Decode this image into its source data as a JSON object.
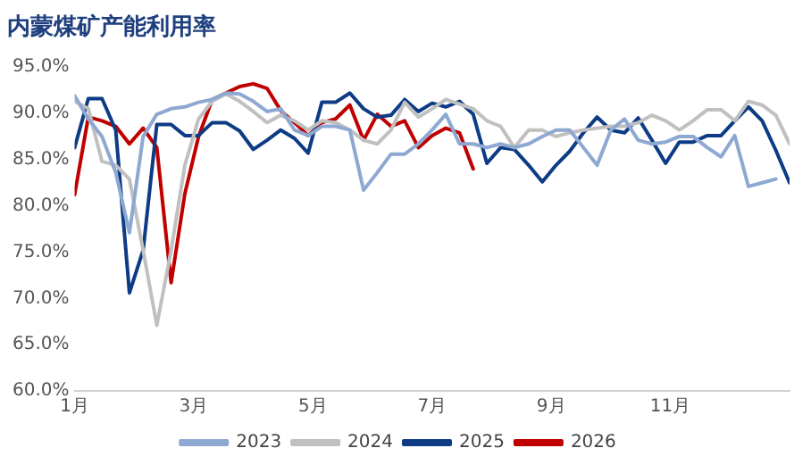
{
  "chart_data": {
    "type": "line",
    "title": "内蒙煤矿产能利用率",
    "x": [
      1,
      1.23,
      1.46,
      1.69,
      1.92,
      2.15,
      2.38,
      2.62,
      2.85,
      3.08,
      3.31,
      3.54,
      3.77,
      4,
      4.23,
      4.46,
      4.69,
      4.92,
      5.15,
      5.38,
      5.62,
      5.85,
      6.08,
      6.31,
      6.54,
      6.77,
      7,
      7.23,
      7.46,
      7.69,
      7.92,
      8.15,
      8.38,
      8.62,
      8.85,
      9.08,
      9.31,
      9.54,
      9.77,
      10,
      10.23,
      10.46,
      10.69,
      10.92,
      11.15,
      11.38,
      11.62,
      11.85,
      12.08,
      12.31,
      12.54,
      12.77,
      13
    ],
    "series": [
      {
        "name": "2023",
        "color": "#8ea9d1",
        "values": [
          91.9,
          89.4,
          87.5,
          83.6,
          77.1,
          87.5,
          89.9,
          90.5,
          90.7,
          91.2,
          91.5,
          92.2,
          92.1,
          91.3,
          90.2,
          90.5,
          88.2,
          87.6,
          88.6,
          88.6,
          88.2,
          81.7,
          83.6,
          85.6,
          85.6,
          86.7,
          88.2,
          89.9,
          86.7,
          86.7,
          86.3,
          86.7,
          86.3,
          86.7,
          87.5,
          88.2,
          88.2,
          86.3,
          84.4,
          88.2,
          89.4,
          87.1,
          86.7,
          86.9,
          87.5,
          87.5,
          86.3,
          85.3,
          87.6,
          82.1,
          82.5,
          82.9,
          null
        ]
      },
      {
        "name": "2024",
        "color": "#c0c0c0",
        "values": [
          91.3,
          90.5,
          84.8,
          84.4,
          82.9,
          75.2,
          67.1,
          75.2,
          84.4,
          89.4,
          91.3,
          92.1,
          91.3,
          90.2,
          89,
          89.8,
          89.2,
          88.2,
          89.2,
          89,
          88.2,
          87.1,
          86.7,
          88.2,
          91.2,
          89.6,
          90.5,
          91.5,
          91,
          90.5,
          89.2,
          88.6,
          86.3,
          88.2,
          88.2,
          87.5,
          87.9,
          88.2,
          88.4,
          88.6,
          88.6,
          89,
          89.8,
          89.2,
          88.2,
          89.2,
          90.4,
          90.4,
          89.2,
          91.3,
          90.9,
          89.8,
          86.7
        ]
      },
      {
        "name": "2025",
        "color": "#0d3c85",
        "values": [
          86.3,
          91.6,
          91.6,
          88.2,
          70.6,
          75.2,
          88.8,
          88.8,
          87.6,
          87.6,
          89,
          89,
          88.1,
          86.1,
          87.1,
          88.2,
          87.3,
          85.7,
          91.2,
          91.2,
          92.2,
          90.5,
          89.6,
          89.8,
          91.5,
          90.2,
          91.1,
          90.7,
          91.3,
          89.9,
          84.6,
          86.3,
          86.1,
          84.4,
          82.6,
          84.4,
          85.9,
          87.9,
          89.6,
          88.2,
          87.9,
          89.5,
          87.1,
          84.6,
          86.9,
          86.9,
          87.6,
          87.6,
          89.2,
          90.7,
          89.2,
          86,
          82.5
        ]
      },
      {
        "name": "2026",
        "color": "#c00000",
        "values": [
          81.2,
          89.6,
          89.2,
          88.6,
          86.7,
          88.4,
          86.3,
          71.7,
          81.3,
          87.5,
          91.5,
          92.2,
          92.9,
          93.2,
          92.7,
          90.3,
          89,
          87.6,
          89,
          89.4,
          90.9,
          87.1,
          89.9,
          88.6,
          89.2,
          86.3,
          87.6,
          88.4,
          87.9,
          84,
          null,
          null,
          null,
          null,
          null,
          null,
          null,
          null,
          null,
          null,
          null,
          null,
          null,
          null,
          null,
          null,
          null,
          null,
          null,
          null,
          null,
          null,
          null
        ]
      }
    ],
    "xlim": [
      1,
      13
    ],
    "xticks": [
      {
        "value": 1,
        "label": "1月"
      },
      {
        "value": 3,
        "label": "3月"
      },
      {
        "value": 5,
        "label": "5月"
      },
      {
        "value": 7,
        "label": "7月"
      },
      {
        "value": 9,
        "label": "9月"
      },
      {
        "value": 11,
        "label": "11月"
      }
    ],
    "ylim": [
      60,
      95
    ],
    "yticks": [
      {
        "value": 60,
        "label": "60.0%"
      },
      {
        "value": 65,
        "label": "65.0%"
      },
      {
        "value": 70,
        "label": "70.0%"
      },
      {
        "value": 75,
        "label": "75.0%"
      },
      {
        "value": 80,
        "label": "80.0%"
      },
      {
        "value": 85,
        "label": "85.0%"
      },
      {
        "value": 90,
        "label": "90.0%"
      },
      {
        "value": 95,
        "label": "95.0%"
      }
    ],
    "grid": false,
    "legend": "bottom",
    "marker": "none",
    "line_style": "solid"
  }
}
